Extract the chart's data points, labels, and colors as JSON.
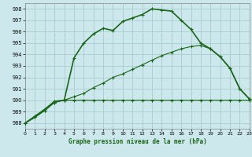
{
  "title": "Graphe pression niveau de la mer (hPa)",
  "background_color": "#cce8ec",
  "grid_color": "#aacccc",
  "line_color": "#1a6618",
  "xlim": [
    0,
    23
  ],
  "ylim": [
    987.5,
    998.5
  ],
  "xticks": [
    0,
    1,
    2,
    3,
    4,
    5,
    6,
    7,
    8,
    9,
    10,
    11,
    12,
    13,
    14,
    15,
    16,
    17,
    18,
    19,
    20,
    21,
    22,
    23
  ],
  "yticks": [
    988,
    989,
    990,
    991,
    992,
    993,
    994,
    995,
    996,
    997,
    998
  ],
  "series1_x": [
    0,
    1,
    2,
    3,
    4,
    5,
    6,
    7,
    8,
    9,
    10,
    11,
    12,
    13,
    14,
    15,
    16,
    17,
    18,
    19,
    20,
    21,
    22,
    23
  ],
  "series1_y": [
    988.0,
    988.6,
    989.2,
    989.9,
    990.0,
    993.7,
    995.0,
    995.8,
    996.3,
    996.1,
    996.9,
    997.2,
    997.5,
    998.0,
    997.9,
    997.8,
    997.0,
    996.2,
    995.0,
    994.5,
    993.8,
    992.8,
    991.0,
    990.1
  ],
  "series2_x": [
    0,
    1,
    2,
    3,
    4,
    5,
    6,
    7,
    8,
    9,
    10,
    11,
    12,
    13,
    14,
    15,
    16,
    17,
    18,
    19,
    20,
    21,
    22,
    23
  ],
  "series2_y": [
    988.0,
    988.5,
    989.1,
    989.8,
    990.0,
    990.0,
    990.0,
    990.0,
    990.0,
    990.0,
    990.0,
    990.0,
    990.0,
    990.0,
    990.0,
    990.0,
    990.0,
    990.0,
    990.0,
    990.0,
    990.0,
    990.0,
    990.0,
    990.0
  ],
  "series3_x": [
    0,
    1,
    2,
    3,
    4,
    5,
    6,
    7,
    8,
    9,
    10,
    11,
    12,
    13,
    14,
    15,
    16,
    17,
    18,
    19,
    20,
    21,
    22,
    23
  ],
  "series3_y": [
    988.0,
    988.5,
    989.1,
    989.8,
    990.0,
    990.3,
    990.6,
    991.1,
    991.5,
    992.0,
    992.3,
    992.7,
    993.1,
    993.5,
    993.9,
    994.2,
    994.5,
    994.7,
    994.8,
    994.5,
    993.8,
    992.8,
    991.0,
    990.1
  ]
}
